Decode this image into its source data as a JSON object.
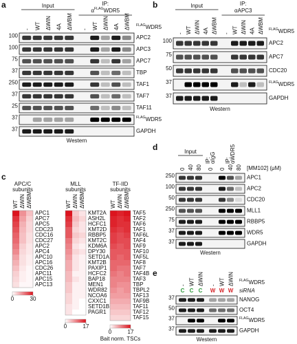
{
  "panel_a": {
    "letter": "a",
    "input_label": "Input",
    "ip_label": "IP:",
    "ip_target": {
      "prefix": "α",
      "sup": "FLAG",
      "text": "WDR5"
    },
    "lanes": [
      "-",
      "WT",
      "ΔWIN",
      "4A",
      "ΔWBM",
      "-",
      "WT",
      "ΔWIN",
      "4A",
      "ΔWBM"
    ],
    "lane_header": {
      "sup": "FLAG",
      "text": "WDR5"
    },
    "rows": [
      {
        "label": "APC2",
        "mw": 100
      },
      {
        "label": "APC3",
        "mw": 100
      },
      {
        "label": "APC7",
        "mw": 75
      },
      {
        "label": "TBP",
        "mw": 37
      },
      {
        "label": "TAF1",
        "mw": 250
      },
      {
        "label": "TAF7",
        "mw": 37
      },
      {
        "label": "TAF11",
        "mw": 25
      },
      {
        "label": {
          "sup": "FLAG",
          "text": "WDR5"
        },
        "mw": 37
      },
      {
        "label": "GAPDH",
        "mw": 37
      }
    ],
    "footer": "Western"
  },
  "panel_b": {
    "letter": "b",
    "input_label": "Input",
    "ip_label": "IP:",
    "ip_target": "αAPC3",
    "lanes": [
      "-",
      "WT",
      "ΔWIN",
      "4A",
      "ΔWBM",
      "-",
      "WT",
      "ΔWIN",
      "4A",
      "ΔWBM"
    ],
    "lane_header": {
      "sup": "FLAG",
      "text": "WDR5"
    },
    "rows": [
      {
        "label": "APC2",
        "mw": 100
      },
      {
        "label": "APC7",
        "mw": 75
      },
      {
        "label": "CDC20",
        "mw": 50
      },
      {
        "label": {
          "sup": "FLAG",
          "text": "WDR5"
        },
        "mw": 37
      },
      {
        "label": "GAPDH",
        "mw": 37
      }
    ],
    "footer": "Western"
  },
  "panel_c": {
    "letter": "c",
    "scale_label": "Bait norm. TSCs",
    "heatmaps": [
      {
        "title": [
          "APC/C",
          "subunits"
        ],
        "columns": [
          "WT",
          "ΔWIN",
          "ΔWBM"
        ],
        "rows": [
          "APC1",
          "APC7",
          "APC5",
          "CDC23",
          "CDC16",
          "CDC27",
          "APC2",
          "APC4",
          "APC10",
          "APC16",
          "CDC26",
          "APC11",
          "APC15",
          "APC13"
        ],
        "values": [
          [
            30,
            14,
            8
          ],
          [
            26,
            12,
            6
          ],
          [
            24,
            10,
            5
          ],
          [
            22,
            9,
            5
          ],
          [
            20,
            8,
            4
          ],
          [
            19,
            8,
            4
          ],
          [
            17,
            6,
            3
          ],
          [
            15,
            5,
            3
          ],
          [
            12,
            4,
            2
          ],
          [
            10,
            4,
            2
          ],
          [
            8,
            3,
            1
          ],
          [
            6,
            2,
            1
          ],
          [
            5,
            2,
            1
          ],
          [
            4,
            1,
            1
          ]
        ],
        "scale": [
          0,
          30
        ],
        "scale_ticks": [
          0,
          30
        ]
      },
      {
        "title": [
          "MLL",
          "subunits"
        ],
        "columns": [
          "WT",
          "ΔWIN",
          "ΔWBM"
        ],
        "rows": [
          "KMT2A",
          "ASH2L",
          "HCFC1",
          "KMT2D",
          "RBBP5",
          "KMT2C",
          "KDM6A",
          "DPY30",
          "SETD1A",
          "KMT2B",
          "PAXIP1",
          "HCFC2",
          "BAP18",
          "MEN1",
          "WDR82",
          "NCOA6",
          "CXXC1",
          "SETD1B",
          "PAGR1"
        ],
        "values": [
          [
            17,
            4,
            2
          ],
          [
            15,
            5,
            3
          ],
          [
            14,
            4,
            2
          ],
          [
            12,
            3,
            2
          ],
          [
            12,
            4,
            3
          ],
          [
            10,
            3,
            2
          ],
          [
            9,
            2,
            1
          ],
          [
            8,
            3,
            2
          ],
          [
            7,
            2,
            1
          ],
          [
            6,
            2,
            1
          ],
          [
            6,
            2,
            1
          ],
          [
            5,
            1,
            1
          ],
          [
            5,
            2,
            1
          ],
          [
            4,
            1,
            1
          ],
          [
            4,
            1,
            1
          ],
          [
            3,
            1,
            1
          ],
          [
            3,
            1,
            0
          ],
          [
            2,
            1,
            0
          ],
          [
            2,
            0,
            0
          ]
        ],
        "scale": [
          0,
          17
        ],
        "scale_ticks": [
          0,
          17
        ]
      },
      {
        "title": [
          "TF-IID",
          "subunits"
        ],
        "columns": [
          "WT",
          "ΔWIN",
          "ΔWBM"
        ],
        "rows": [
          "TAF5",
          "TAF2",
          "TAF6",
          "TAF1",
          "TAF6L",
          "TAF4",
          "TAF9",
          "TAF10",
          "TAF5L",
          "TAF8",
          "TAF7",
          "TAF4B",
          "TAF3",
          "TBP",
          "TBPL2",
          "TAF13",
          "TAF9B",
          "TAF11",
          "TAF12",
          "TAF15"
        ],
        "values": [
          [
            17,
            16,
            17
          ],
          [
            16,
            15,
            16
          ],
          [
            16,
            15,
            15
          ],
          [
            15,
            14,
            15
          ],
          [
            14,
            13,
            14
          ],
          [
            14,
            13,
            13
          ],
          [
            13,
            12,
            13
          ],
          [
            12,
            12,
            12
          ],
          [
            12,
            11,
            12
          ],
          [
            11,
            11,
            11
          ],
          [
            11,
            10,
            10
          ],
          [
            10,
            9,
            10
          ],
          [
            9,
            9,
            9
          ],
          [
            9,
            8,
            8
          ],
          [
            8,
            7,
            8
          ],
          [
            7,
            7,
            7
          ],
          [
            6,
            6,
            6
          ],
          [
            5,
            5,
            5
          ],
          [
            4,
            4,
            4
          ],
          [
            3,
            3,
            3
          ]
        ],
        "scale": [
          0,
          17
        ],
        "scale_ticks": [
          0,
          17
        ]
      }
    ]
  },
  "panel_d": {
    "letter": "d",
    "input_label": "Input",
    "ip_igg": [
      "IP:",
      "αIgG"
    ],
    "ip_wdr5": [
      "IP:",
      "αWDR5"
    ],
    "lanes": [
      0,
      40,
      80,
      0,
      0,
      40,
      80
    ],
    "dose_label": "[MM102] (μM)",
    "rows": [
      {
        "label": "APC1",
        "mw": 250
      },
      {
        "label": "APC2",
        "mw": 100
      },
      {
        "label": "CDC20",
        "mw": 50
      },
      {
        "label": "MLL1",
        "mw": 250
      },
      {
        "label": "RBBP5",
        "mw": 75
      },
      {
        "label": "WDR5",
        "mw": 37
      },
      {
        "label": "GAPDH",
        "mw": 37
      }
    ],
    "footer": "Western"
  },
  "panel_e": {
    "letter": "e",
    "lanes": [
      "-",
      "WT",
      "ΔWIN",
      "-",
      "WT",
      "ΔWIN"
    ],
    "lane_header": {
      "sup": "FLAG",
      "text": "WDR5"
    },
    "sirna_label": "siRNA",
    "sirna": [
      {
        "label": "C",
        "color": "#2f9a3c"
      },
      {
        "label": "C",
        "color": "#2f9a3c"
      },
      {
        "label": "C",
        "color": "#2f9a3c"
      },
      {
        "label": "W",
        "color": "#d6262b"
      },
      {
        "label": "W",
        "color": "#d6262b"
      },
      {
        "label": "W",
        "color": "#d6262b"
      }
    ],
    "rows": [
      {
        "label": "NANOG",
        "mw": 37
      },
      {
        "label": "OCT4",
        "mw": 50
      },
      {
        "label": {
          "sup": "FLAG",
          "text": "WDR5"
        },
        "mw": 37
      },
      {
        "label": "GAPDH",
        "mw": 37
      }
    ],
    "footer": "Western"
  }
}
